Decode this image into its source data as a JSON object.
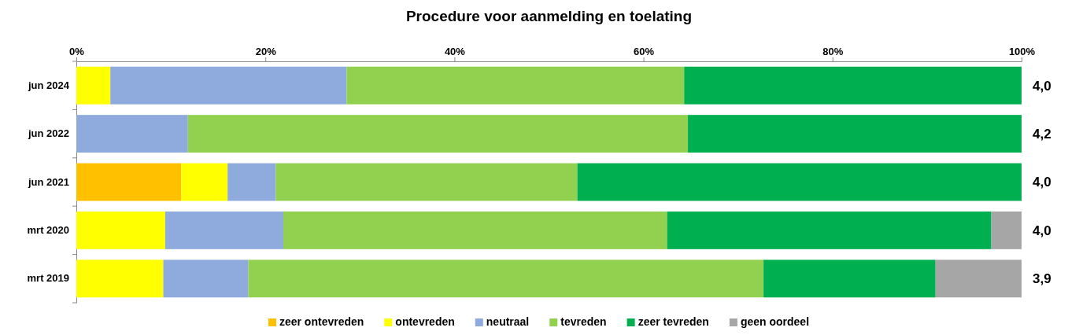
{
  "chart_data": {
    "type": "bar",
    "orientation": "horizontal",
    "stacked": true,
    "title": "Procedure voor aanmelding en toelating",
    "categories": [
      "jun 2024",
      "jun 2022",
      "jun 2021",
      "mrt 2020",
      "mrt 2019"
    ],
    "series": [
      {
        "name": "zeer ontevreden",
        "color": "#ffc000",
        "values": [
          0,
          0,
          11.1,
          0,
          0
        ]
      },
      {
        "name": "ontevreden",
        "color": "#ffff00",
        "values": [
          3.6,
          0,
          4.9,
          9.4,
          9.2
        ]
      },
      {
        "name": "neutraal",
        "color": "#8faadc",
        "values": [
          25.0,
          11.8,
          5.1,
          12.5,
          9.0
        ]
      },
      {
        "name": "tevreden",
        "color": "#92d050",
        "values": [
          35.7,
          52.9,
          31.9,
          40.6,
          54.5
        ]
      },
      {
        "name": "zeer tevreden",
        "color": "#00b050",
        "values": [
          35.7,
          35.3,
          47.0,
          34.3,
          18.2
        ]
      },
      {
        "name": "geen oordeel",
        "color": "#a6a6a6",
        "values": [
          0,
          0,
          0,
          3.2,
          9.1
        ]
      }
    ],
    "xlim": [
      0,
      100
    ],
    "xticks": [
      {
        "value": 0,
        "label": "0%"
      },
      {
        "value": 20,
        "label": "20%"
      },
      {
        "value": 40,
        "label": "40%"
      },
      {
        "value": 60,
        "label": "60%"
      },
      {
        "value": 80,
        "label": "80%"
      },
      {
        "value": 100,
        "label": "100%"
      }
    ],
    "annotations": [
      "4,0",
      "4,2",
      "4,0",
      "4,0",
      "3,9"
    ],
    "grid": false,
    "legend": "bottom"
  }
}
